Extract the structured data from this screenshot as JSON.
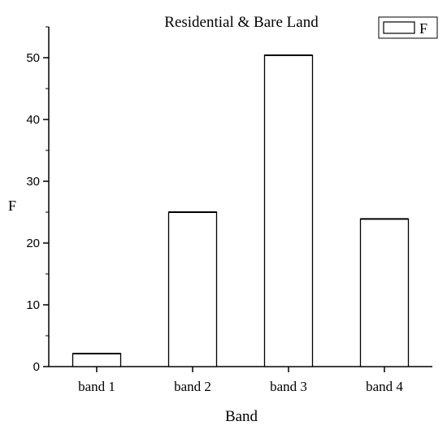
{
  "chart_data": {
    "type": "bar",
    "title": "Residential & Bare Land",
    "xlabel": "Band",
    "ylabel": "F",
    "categories": [
      "band 1",
      "band 2",
      "band 3",
      "band 4"
    ],
    "series": [
      {
        "name": "F",
        "values": [
          2.1,
          25.0,
          50.4,
          23.9
        ]
      }
    ],
    "ylim": [
      0,
      55
    ],
    "yticks": [
      0,
      10,
      20,
      30,
      40,
      50
    ],
    "grid": false,
    "legend_position": "top-right",
    "bar_fill": "#ffffff",
    "bar_stroke": "#000000"
  }
}
